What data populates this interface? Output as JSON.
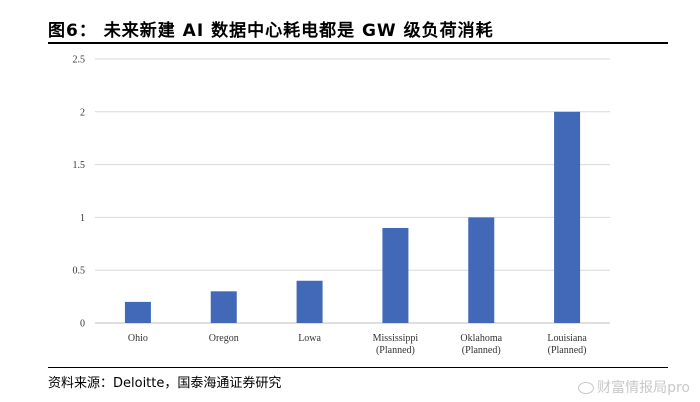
{
  "figure": {
    "title": "图6：  未来新建 AI 数据中心耗电都是 GW 级负荷消耗",
    "source": "资料来源：Deloitte，国泰海通证券研究",
    "watermark": "财富情报局pro"
  },
  "colors": {
    "bar": "#4169b8",
    "grid": "#d9d9d9",
    "axis": "#bfbfbf"
  },
  "chart_data": {
    "type": "bar",
    "categories": [
      "Ohio",
      "Oregon",
      "Lowa",
      "Mississippi (Planned)",
      "Oklahoma (Planned)",
      "Louisiana (Planned)"
    ],
    "category_lines": [
      [
        "Ohio"
      ],
      [
        "Oregon"
      ],
      [
        "Lowa"
      ],
      [
        "Mississippi",
        "(Planned)"
      ],
      [
        "Oklahoma",
        "(Planned)"
      ],
      [
        "Louisiana",
        "(Planned)"
      ]
    ],
    "values": [
      0.2,
      0.3,
      0.4,
      0.9,
      1.0,
      2.0
    ],
    "yticks": [
      "0",
      "0.5",
      "1",
      "1.5",
      "2",
      "2.5"
    ],
    "ylim": [
      0,
      2.5
    ],
    "grid": true,
    "legend": false,
    "title": "",
    "xlabel": "",
    "ylabel": ""
  }
}
